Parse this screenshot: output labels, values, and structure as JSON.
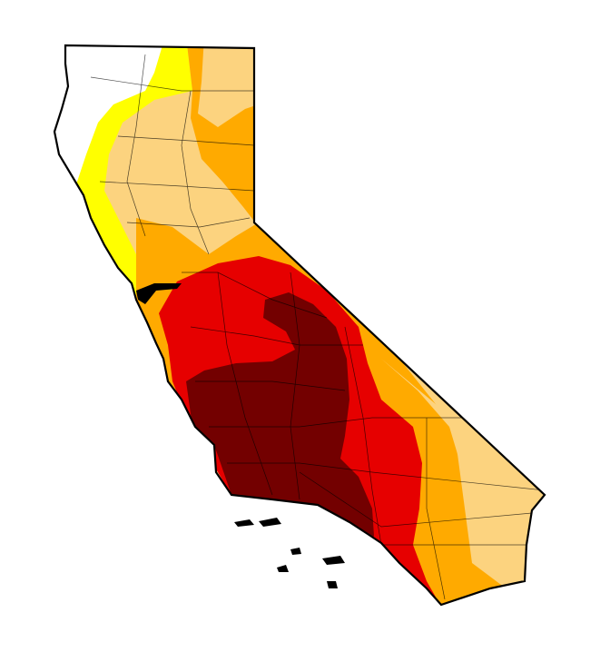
{
  "map": {
    "region": "California",
    "colors": {
      "none": "#FFFFFF",
      "d0": "#FFFF00",
      "d1": "#FCD37F",
      "d2": "#FFAA00",
      "d3": "#E60000",
      "d4": "#730000",
      "outline": "#000000"
    }
  }
}
